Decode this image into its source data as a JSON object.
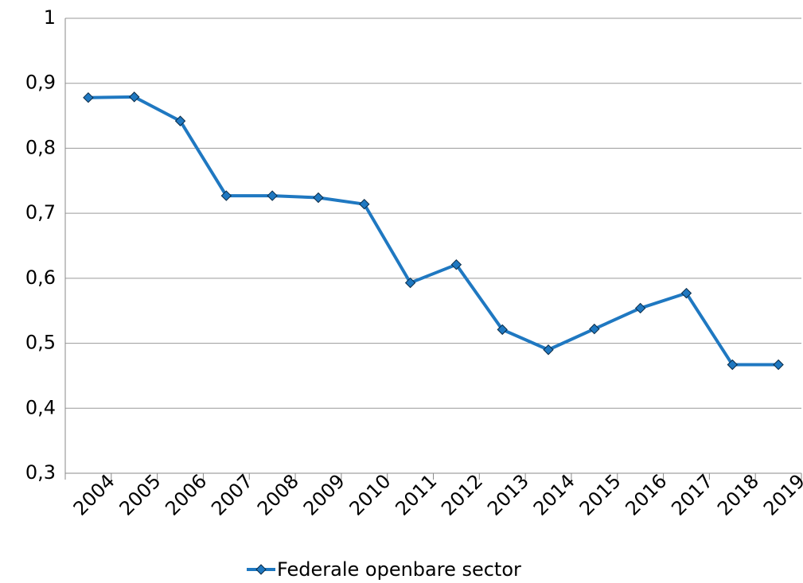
{
  "chart_data": {
    "type": "line",
    "categories": [
      "2004",
      "2005",
      "2006",
      "2007",
      "2008",
      "2009",
      "2010",
      "2011",
      "2012",
      "2013",
      "2014",
      "2015",
      "2016",
      "2017",
      "2018",
      "2019"
    ],
    "series": [
      {
        "name": "Federale openbare sector",
        "color": "#1f78c1",
        "values": [
          0.878,
          0.879,
          0.842,
          0.727,
          0.727,
          0.724,
          0.714,
          0.593,
          0.621,
          0.521,
          0.49,
          0.522,
          0.554,
          0.577,
          0.467,
          0.467
        ]
      }
    ],
    "ylim": [
      0.3,
      1
    ],
    "yticks": [
      {
        "value": 0.3,
        "label": "0,3"
      },
      {
        "value": 0.4,
        "label": "0,4"
      },
      {
        "value": 0.5,
        "label": "0,5"
      },
      {
        "value": 0.6,
        "label": "0,6"
      },
      {
        "value": 0.7,
        "label": "0,7"
      },
      {
        "value": 0.8,
        "label": "0,8"
      },
      {
        "value": 0.9,
        "label": "0,9"
      },
      1
    ],
    "grid": true,
    "legend": "bottom"
  }
}
